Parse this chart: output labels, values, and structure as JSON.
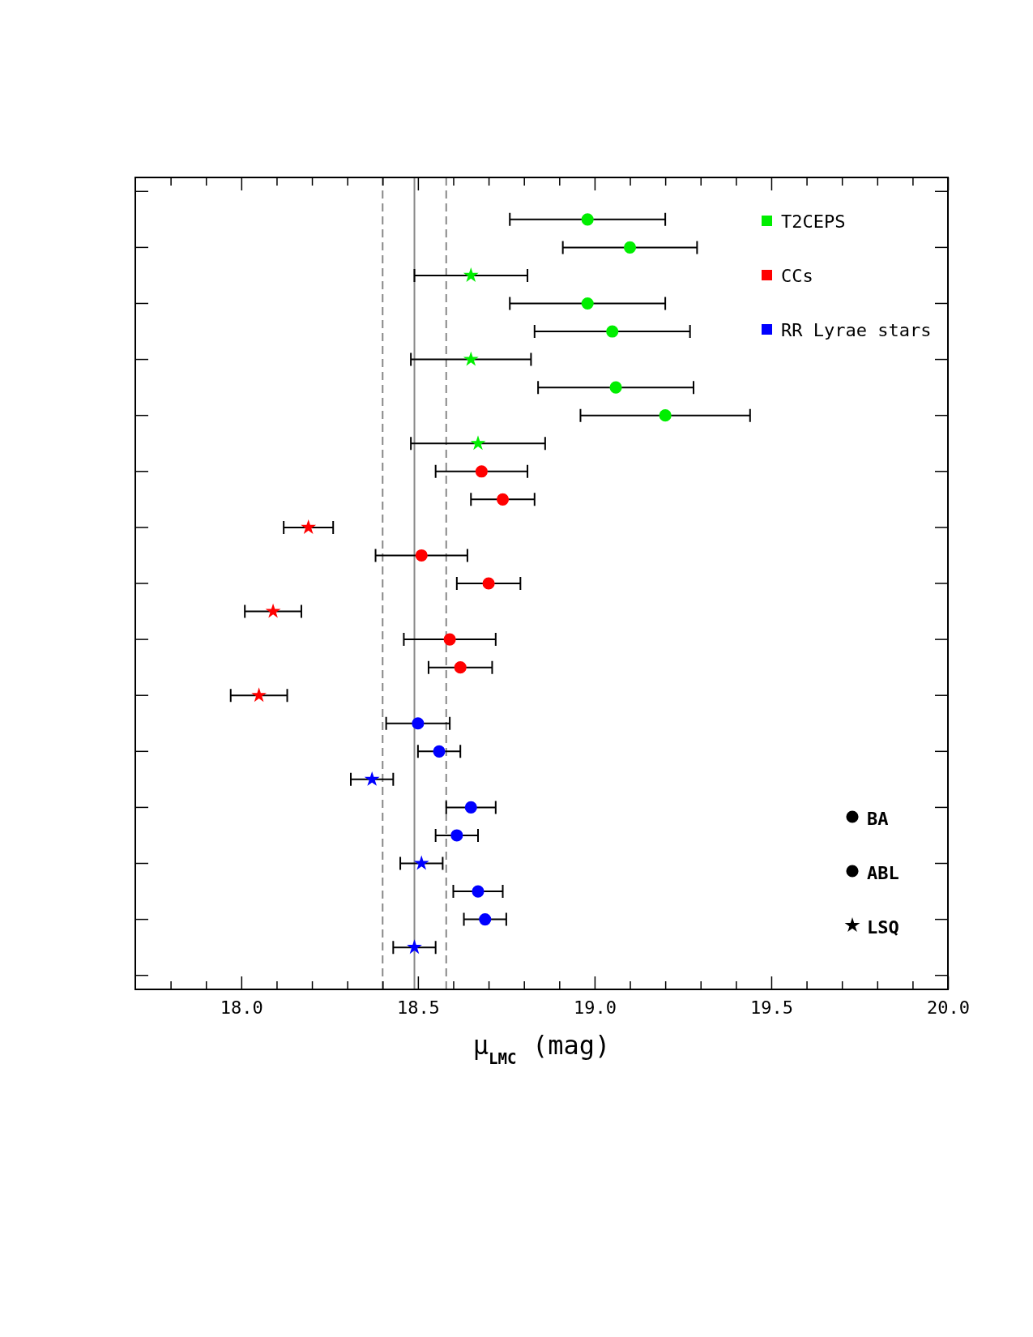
{
  "chart_data": {
    "type": "scatter",
    "orientation": "horizontal",
    "xlabel": "μ$_{LMC}$ (mag)",
    "categories": [
      null,
      null,
      null,
      null,
      null,
      null,
      null,
      null,
      null,
      null,
      null,
      null,
      null,
      null,
      null,
      null,
      null,
      null,
      null,
      null,
      null,
      null,
      null,
      null,
      null,
      null,
      null,
      null,
      null
    ],
    "xlim": [
      17.7,
      20.0
    ],
    "xticks": [
      {
        "value": 17.8,
        "label": null
      },
      {
        "value": 17.9,
        "label": null
      },
      {
        "value": 18.0,
        "label": "18.0"
      },
      {
        "value": 18.1,
        "label": null
      },
      {
        "value": 18.2,
        "label": null
      },
      {
        "value": 18.3,
        "label": null
      },
      {
        "value": 18.4,
        "label": null
      },
      {
        "value": 18.5,
        "label": "18.5"
      },
      {
        "value": 18.6,
        "label": null
      },
      {
        "value": 18.7,
        "label": null
      },
      {
        "value": 18.8,
        "label": null
      },
      {
        "value": 18.9,
        "label": null
      },
      {
        "value": 19.0,
        "label": "19.0"
      },
      {
        "value": 19.1,
        "label": null
      },
      {
        "value": 19.2,
        "label": null
      },
      {
        "value": 19.3,
        "label": null
      },
      {
        "value": 19.4,
        "label": null
      },
      {
        "value": 19.5,
        "label": "19.5"
      },
      {
        "value": 19.6,
        "label": null
      },
      {
        "value": 19.7,
        "label": null
      },
      {
        "value": 19.8,
        "label": null
      },
      {
        "value": 19.9,
        "label": null
      },
      {
        "value": 20.0,
        "label": "20.0"
      }
    ],
    "series": [
      {
        "name": "T2CEPS",
        "color": "#00ee00",
        "marker": "circle",
        "values": [
          null,
          18.98,
          null,
          null,
          18.98,
          null,
          null,
          19.06,
          null,
          null,
          null,
          null,
          null,
          null,
          null,
          null,
          null,
          null,
          null,
          null,
          null,
          null,
          null,
          null,
          null,
          null,
          null,
          null,
          null
        ],
        "errors": [
          null,
          0.22,
          null,
          null,
          0.22,
          null,
          null,
          0.22,
          null,
          null,
          null,
          null,
          null,
          null,
          null,
          null,
          null,
          null,
          null,
          null,
          null,
          null,
          null,
          null,
          null,
          null,
          null,
          null,
          null
        ]
      },
      {
        "color": "#00ee00",
        "marker": "circle",
        "values": [
          null,
          null,
          19.1,
          null,
          null,
          19.05,
          null,
          null,
          19.2,
          null,
          null,
          null,
          null,
          null,
          null,
          null,
          null,
          null,
          null,
          null,
          null,
          null,
          null,
          null,
          null,
          null,
          null,
          null,
          null
        ],
        "errors": [
          null,
          null,
          0.19,
          null,
          null,
          0.22,
          null,
          null,
          0.24,
          null,
          null,
          null,
          null,
          null,
          null,
          null,
          null,
          null,
          null,
          null,
          null,
          null,
          null,
          null,
          null,
          null,
          null,
          null,
          null
        ]
      },
      {
        "color": "#00ee00",
        "marker": "star",
        "values": [
          null,
          null,
          null,
          18.65,
          null,
          null,
          18.65,
          null,
          null,
          18.67,
          null,
          null,
          null,
          null,
          null,
          null,
          null,
          null,
          null,
          null,
          null,
          null,
          null,
          null,
          null,
          null,
          null,
          null,
          null
        ],
        "errors": [
          null,
          null,
          null,
          0.16,
          null,
          null,
          0.17,
          null,
          null,
          0.19,
          null,
          null,
          null,
          null,
          null,
          null,
          null,
          null,
          null,
          null,
          null,
          null,
          null,
          null,
          null,
          null,
          null,
          null,
          null
        ]
      },
      {
        "name": "CCs",
        "color": "#ff0000",
        "marker": "circle",
        "values": [
          null,
          null,
          null,
          null,
          null,
          null,
          null,
          null,
          null,
          null,
          18.68,
          null,
          null,
          18.51,
          null,
          null,
          18.59,
          null,
          null,
          null,
          null,
          null,
          null,
          null,
          null,
          null,
          null,
          null,
          null
        ],
        "errors": [
          null,
          null,
          null,
          null,
          null,
          null,
          null,
          null,
          null,
          null,
          0.13,
          null,
          null,
          0.13,
          null,
          null,
          0.13,
          null,
          null,
          null,
          null,
          null,
          null,
          null,
          null,
          null,
          null,
          null,
          null
        ]
      },
      {
        "color": "#ff0000",
        "marker": "circle",
        "values": [
          null,
          null,
          null,
          null,
          null,
          null,
          null,
          null,
          null,
          null,
          null,
          18.74,
          null,
          null,
          18.7,
          null,
          null,
          18.62,
          null,
          null,
          null,
          null,
          null,
          null,
          null,
          null,
          null,
          null,
          null
        ],
        "errors": [
          null,
          null,
          null,
          null,
          null,
          null,
          null,
          null,
          null,
          null,
          null,
          0.09,
          null,
          null,
          0.09,
          null,
          null,
          0.09,
          null,
          null,
          null,
          null,
          null,
          null,
          null,
          null,
          null,
          null,
          null
        ]
      },
      {
        "color": "#ff0000",
        "marker": "star",
        "values": [
          null,
          null,
          null,
          null,
          null,
          null,
          null,
          null,
          null,
          null,
          null,
          null,
          18.19,
          null,
          null,
          18.09,
          null,
          null,
          18.05,
          null,
          null,
          null,
          null,
          null,
          null,
          null,
          null,
          null,
          null
        ],
        "errors": [
          null,
          null,
          null,
          null,
          null,
          null,
          null,
          null,
          null,
          null,
          null,
          null,
          0.07,
          null,
          null,
          0.08,
          null,
          null,
          0.08,
          null,
          null,
          null,
          null,
          null,
          null,
          null,
          null,
          null,
          null
        ]
      },
      {
        "name": "RR Lyrae stars",
        "color": "#0000ff",
        "marker": "circle",
        "values": [
          null,
          null,
          null,
          null,
          null,
          null,
          null,
          null,
          null,
          null,
          null,
          null,
          null,
          null,
          null,
          null,
          null,
          null,
          null,
          18.5,
          null,
          null,
          18.65,
          null,
          null,
          18.67,
          null,
          null,
          null
        ],
        "errors": [
          null,
          null,
          null,
          null,
          null,
          null,
          null,
          null,
          null,
          null,
          null,
          null,
          null,
          null,
          null,
          null,
          null,
          null,
          null,
          0.09,
          null,
          null,
          0.07,
          null,
          null,
          0.07,
          null,
          null,
          null
        ]
      },
      {
        "color": "#0000ff",
        "marker": "circle",
        "values": [
          null,
          null,
          null,
          null,
          null,
          null,
          null,
          null,
          null,
          null,
          null,
          null,
          null,
          null,
          null,
          null,
          null,
          null,
          null,
          null,
          18.56,
          null,
          null,
          18.61,
          null,
          null,
          18.69,
          null,
          null
        ],
        "errors": [
          null,
          null,
          null,
          null,
          null,
          null,
          null,
          null,
          null,
          null,
          null,
          null,
          null,
          null,
          null,
          null,
          null,
          null,
          null,
          null,
          0.06,
          null,
          null,
          0.06,
          null,
          null,
          0.06,
          null,
          null
        ]
      },
      {
        "color": "#0000ff",
        "marker": "star",
        "values": [
          null,
          null,
          null,
          null,
          null,
          null,
          null,
          null,
          null,
          null,
          null,
          null,
          null,
          null,
          null,
          null,
          null,
          null,
          null,
          null,
          null,
          18.37,
          null,
          null,
          18.51,
          null,
          null,
          18.49,
          null
        ],
        "errors": [
          null,
          null,
          null,
          null,
          null,
          null,
          null,
          null,
          null,
          null,
          null,
          null,
          null,
          null,
          null,
          null,
          null,
          null,
          null,
          null,
          null,
          0.06,
          null,
          null,
          0.06,
          null,
          null,
          0.06,
          null
        ]
      }
    ],
    "ref_lines": [
      {
        "axis": "x",
        "value": 18.49,
        "color": "#888888",
        "line_style": "solid"
      },
      {
        "axis": "x",
        "value": 18.4,
        "color": "#888888",
        "line_style": "dashed"
      },
      {
        "axis": "x",
        "value": 18.58,
        "color": "#888888",
        "line_style": "dashed"
      }
    ],
    "annotations": [
      "BA",
      "ABL",
      "LSQ"
    ],
    "legend": "top right",
    "grid": false
  }
}
